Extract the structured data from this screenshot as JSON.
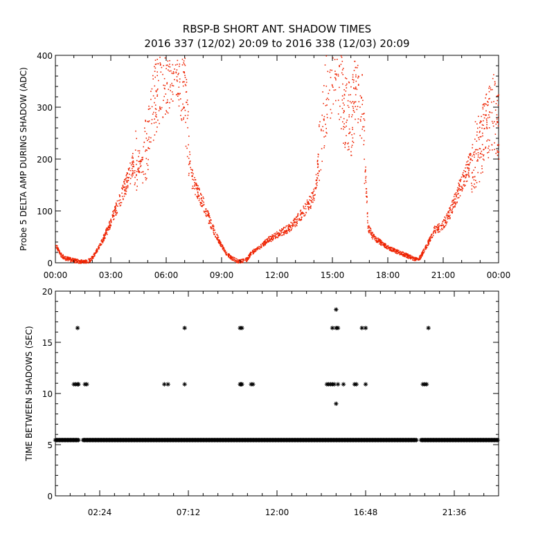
{
  "title": "RBSP-B SHORT ANT. SHADOW TIMES",
  "subtitle": "2016 337 (12/02) 20:09 to 2016 338 (12/03) 20:09",
  "colors": {
    "red": "#ee2200",
    "black": "#000000"
  },
  "chart_data": [
    {
      "type": "scatter",
      "ylabel": "Probe 5 DELTA AMP DURING SHADOW (ADC)",
      "xlim": [
        0,
        24
      ],
      "ylim": [
        0,
        400
      ],
      "x_tick_labels": [
        "00:00",
        "03:00",
        "06:00",
        "09:00",
        "12:00",
        "15:00",
        "18:00",
        "21:00",
        "00:00"
      ],
      "y_tick_labels": [
        "0",
        "100",
        "200",
        "300",
        "400"
      ],
      "y_ticks": [
        0,
        100,
        200,
        300,
        400
      ],
      "point_color": "#ee2200",
      "x_hours": [
        0,
        0.3,
        0.5,
        1,
        1.3,
        1.5,
        1.8,
        2,
        2.4,
        2.8,
        3.2,
        3.6,
        4,
        4.3,
        4.6,
        5,
        5.4,
        5.8,
        6.2,
        6.6,
        7,
        7.3,
        7.6,
        8,
        8.4,
        8.8,
        9.2,
        9.6,
        9.9,
        10.3,
        10.6,
        11,
        11.5,
        12,
        12.5,
        13,
        13.5,
        14,
        14.3,
        14.6,
        15,
        15.3,
        15.6,
        16,
        16.3,
        16.6,
        16.9,
        17.2,
        17.6,
        18,
        18.5,
        19,
        19.4,
        19.7,
        20.1,
        20.5,
        20.9,
        21.3,
        21.7,
        22.1,
        22.5,
        22.9,
        23.3,
        23.7,
        24
      ],
      "y_values": [
        35,
        15,
        10,
        5,
        3,
        2,
        5,
        12,
        35,
        65,
        100,
        135,
        170,
        210,
        190,
        230,
        330,
        360,
        380,
        390,
        320,
        170,
        145,
        115,
        75,
        45,
        20,
        8,
        3,
        6,
        20,
        30,
        45,
        55,
        65,
        80,
        105,
        130,
        220,
        320,
        380,
        370,
        300,
        280,
        350,
        300,
        70,
        50,
        40,
        30,
        22,
        15,
        8,
        10,
        35,
        65,
        70,
        95,
        130,
        165,
        200,
        220,
        260,
        300,
        260
      ]
    },
    {
      "type": "scatter",
      "ylabel": "TIME BETWEEN SHADOWS (SEC)",
      "xlim": [
        0,
        24
      ],
      "ylim": [
        0,
        20
      ],
      "x_tick_labels": [
        "02:24",
        "07:12",
        "12:00",
        "16:48",
        "21:36"
      ],
      "x_ticks": [
        2.4,
        7.2,
        12,
        16.8,
        21.6
      ],
      "y_tick_labels": [
        "0",
        "5",
        "10",
        "15",
        "20"
      ],
      "y_ticks": [
        0,
        5,
        10,
        15,
        20
      ],
      "point_color": "#000000",
      "baseline_value": 5.45,
      "baseline_gaps": [
        [
          1.3,
          1.5
        ],
        [
          19.6,
          19.8
        ]
      ],
      "x_hours": [
        1.0,
        1.1,
        1.2,
        1.25,
        1.6,
        1.7,
        5.9,
        6.1,
        7.0,
        10.0,
        10.05,
        10.1,
        10.6,
        10.7,
        14.7,
        14.8,
        14.9,
        15.0,
        15.1,
        15.3,
        15.6,
        16.2,
        16.3,
        16.8,
        19.9,
        20.0,
        20.1,
        1.2,
        7.0,
        10.0,
        10.1,
        15.0,
        15.2,
        15.3,
        16.6,
        16.8,
        20.2,
        15.2,
        15.2
      ],
      "y_values": [
        10.9,
        10.9,
        10.9,
        10.9,
        10.9,
        10.9,
        10.9,
        10.9,
        10.9,
        10.9,
        10.9,
        10.9,
        10.9,
        10.9,
        10.9,
        10.9,
        10.9,
        10.9,
        10.9,
        10.9,
        10.9,
        10.9,
        10.9,
        10.9,
        10.9,
        10.9,
        10.9,
        16.4,
        16.4,
        16.4,
        16.4,
        16.4,
        16.4,
        16.4,
        16.4,
        16.4,
        16.4,
        18.2,
        9.0
      ]
    }
  ]
}
